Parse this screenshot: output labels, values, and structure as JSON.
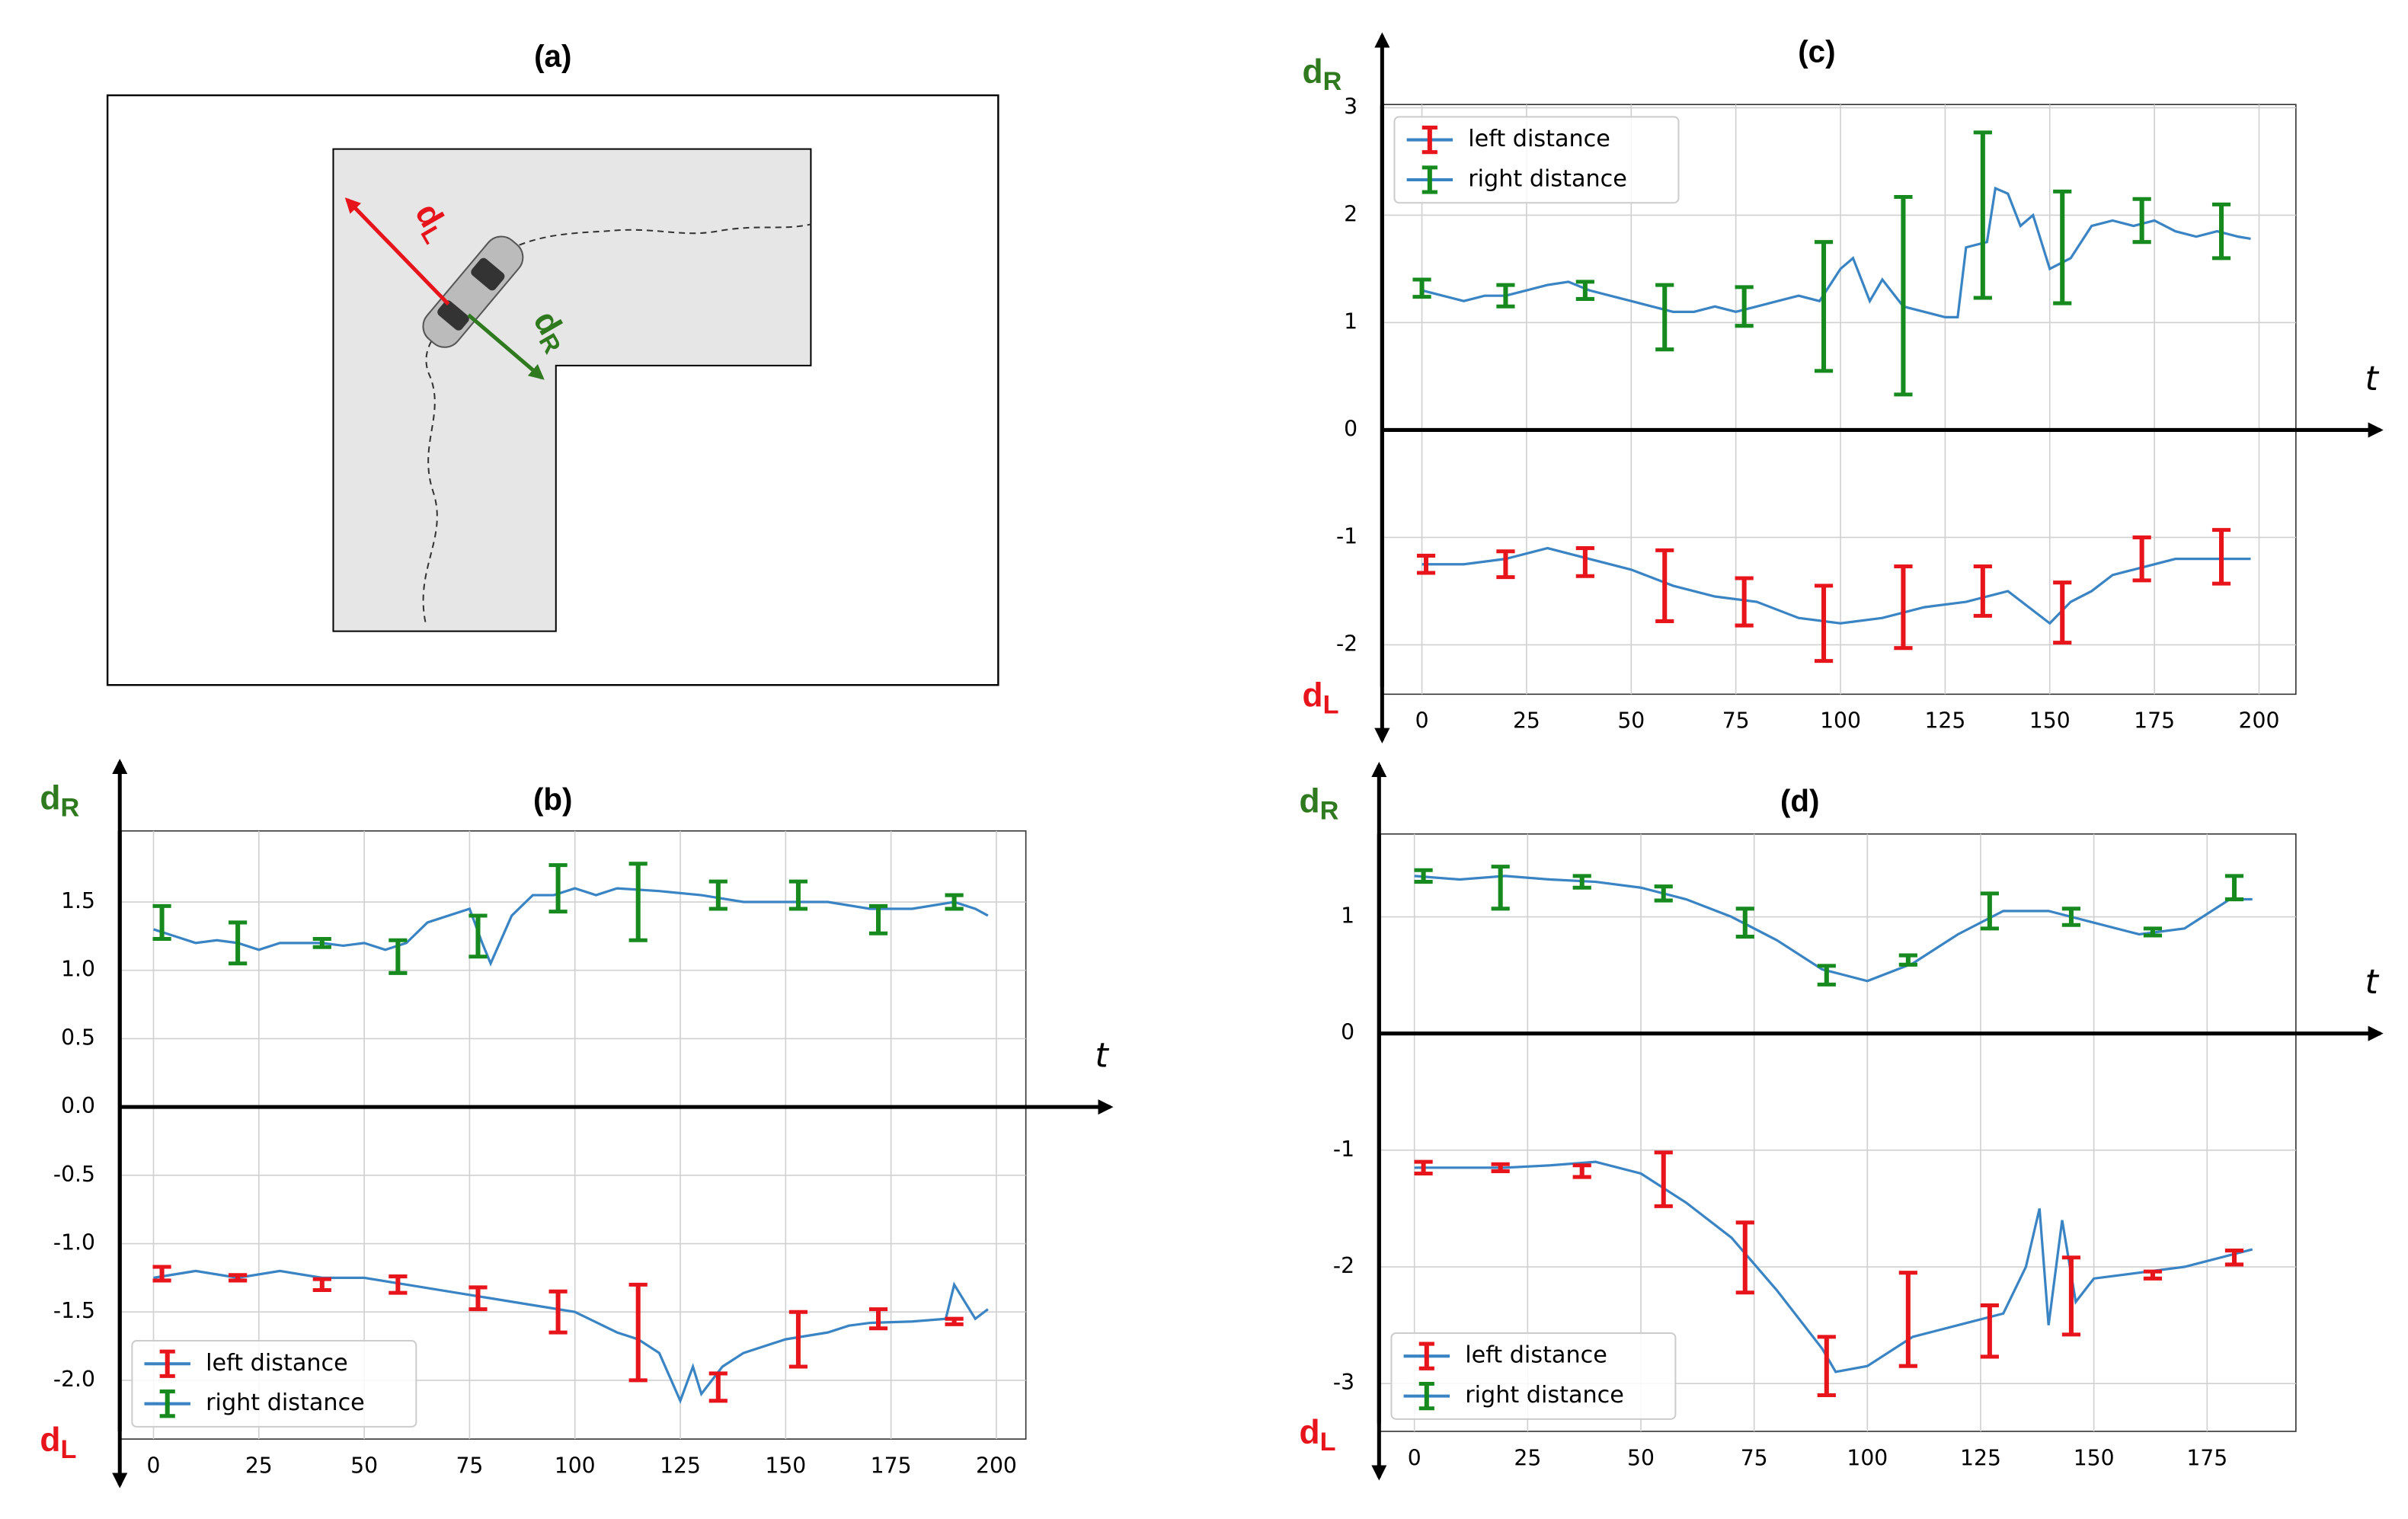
{
  "diagram": {
    "title": "(a)",
    "left_label": "d",
    "left_sub": "L",
    "right_label": "d",
    "right_sub": "R"
  },
  "chart_data": [
    {
      "type": "errorbar_line",
      "title": "(b)",
      "x_label": "t",
      "y_top_label": "d",
      "y_top_sub": "R",
      "y_bottom_label": "d",
      "y_bottom_sub": "L",
      "legend": "lower left",
      "grid": true,
      "xlim": [
        -8,
        207
      ],
      "ylim": [
        -2.43,
        2.02
      ],
      "xticks": [
        0,
        25,
        50,
        75,
        100,
        125,
        150,
        175,
        200
      ],
      "yticks": [
        {
          "value": -2,
          "label": "-2.0"
        },
        -1.5,
        {
          "value": -1,
          "label": "-1.0"
        },
        -0.5,
        {
          "value": 0,
          "label": "0.0"
        },
        0.5,
        {
          "value": 1,
          "label": "1.0"
        },
        1.5
      ],
      "series": [
        {
          "name": "left distance",
          "color": "#e8141c",
          "line_color": "#3a84c4",
          "x": [
            0,
            10,
            20,
            30,
            40,
            50,
            60,
            70,
            80,
            90,
            100,
            110,
            115,
            120,
            125,
            128,
            130,
            135,
            140,
            150,
            160,
            165,
            170,
            180,
            188,
            190,
            195,
            198
          ],
          "values": [
            -1.25,
            -1.2,
            -1.25,
            -1.2,
            -1.25,
            -1.25,
            -1.3,
            -1.35,
            -1.4,
            -1.45,
            -1.5,
            -1.65,
            -1.7,
            -1.8,
            -2.15,
            -1.9,
            -2.1,
            -1.9,
            -1.8,
            -1.7,
            -1.65,
            -1.6,
            -1.58,
            -1.57,
            -1.55,
            -1.3,
            -1.55,
            -1.48
          ],
          "errorbars": {
            "x": [
              2,
              20,
              40,
              58,
              77,
              96,
              115,
              134,
              153,
              172,
              190
            ],
            "values": [
              -1.22,
              -1.25,
              -1.3,
              -1.3,
              -1.4,
              -1.5,
              -1.65,
              -2.05,
              -1.7,
              -1.55,
              -1.57
            ],
            "errors": [
              0.05,
              0.02,
              0.04,
              0.06,
              0.08,
              0.15,
              0.35,
              0.1,
              0.2,
              0.07,
              0.02
            ]
          }
        },
        {
          "name": "right distance",
          "color": "#178a1f",
          "line_color": "#3a84c4",
          "x": [
            0,
            5,
            10,
            15,
            20,
            25,
            30,
            35,
            40,
            45,
            50,
            55,
            60,
            65,
            70,
            75,
            78,
            80,
            85,
            90,
            95,
            100,
            105,
            110,
            120,
            130,
            140,
            150,
            160,
            170,
            180,
            190,
            195,
            198
          ],
          "values": [
            1.3,
            1.25,
            1.2,
            1.22,
            1.2,
            1.15,
            1.2,
            1.2,
            1.2,
            1.18,
            1.2,
            1.15,
            1.2,
            1.35,
            1.4,
            1.45,
            1.2,
            1.05,
            1.4,
            1.55,
            1.55,
            1.6,
            1.55,
            1.6,
            1.58,
            1.55,
            1.5,
            1.5,
            1.5,
            1.45,
            1.45,
            1.5,
            1.45,
            1.4
          ],
          "errorbars": {
            "x": [
              2,
              20,
              40,
              58,
              77,
              96,
              115,
              134,
              153,
              172,
              190
            ],
            "values": [
              1.35,
              1.2,
              1.2,
              1.1,
              1.25,
              1.6,
              1.5,
              1.55,
              1.55,
              1.37,
              1.5
            ],
            "errors": [
              0.12,
              0.15,
              0.03,
              0.12,
              0.15,
              0.17,
              0.28,
              0.1,
              0.1,
              0.1,
              0.05
            ]
          }
        }
      ]
    },
    {
      "type": "errorbar_line",
      "title": "(c)",
      "x_label": "t",
      "y_top_label": "d",
      "y_top_sub": "R",
      "y_bottom_label": "d",
      "y_bottom_sub": "L",
      "legend": "upper left",
      "grid": true,
      "xlim": [
        -9.5,
        208.8
      ],
      "ylim": [
        -2.46,
        3.03
      ],
      "xticks": [
        0,
        25,
        50,
        75,
        100,
        125,
        150,
        175,
        200
      ],
      "yticks": [
        -2,
        -1,
        0,
        1,
        2,
        3
      ],
      "series": [
        {
          "name": "left distance",
          "color": "#e8141c",
          "line_color": "#3a84c4",
          "x": [
            0,
            10,
            20,
            30,
            40,
            50,
            60,
            70,
            80,
            90,
            100,
            110,
            120,
            130,
            140,
            150,
            155,
            160,
            165,
            170,
            180,
            190,
            198
          ],
          "values": [
            -1.25,
            -1.25,
            -1.2,
            -1.1,
            -1.2,
            -1.3,
            -1.45,
            -1.55,
            -1.6,
            -1.75,
            -1.8,
            -1.75,
            -1.65,
            -1.6,
            -1.5,
            -1.8,
            -1.6,
            -1.5,
            -1.35,
            -1.3,
            -1.2,
            -1.2,
            -1.2
          ],
          "errorbars": {
            "x": [
              1,
              20,
              39,
              58,
              77,
              96,
              115,
              134,
              153,
              172,
              191
            ],
            "values": [
              -1.25,
              -1.25,
              -1.23,
              -1.45,
              -1.6,
              -1.8,
              -1.65,
              -1.5,
              -1.7,
              -1.2,
              -1.18
            ],
            "errors": [
              0.08,
              0.12,
              0.13,
              0.33,
              0.22,
              0.35,
              0.38,
              0.23,
              0.28,
              0.2,
              0.25
            ]
          }
        },
        {
          "name": "right distance",
          "color": "#178a1f",
          "line_color": "#3a84c4",
          "x": [
            0,
            5,
            10,
            15,
            20,
            25,
            30,
            35,
            40,
            45,
            50,
            55,
            60,
            65,
            70,
            75,
            80,
            85,
            90,
            95,
            100,
            103,
            107,
            110,
            115,
            120,
            125,
            128,
            130,
            135,
            137,
            140,
            143,
            146,
            150,
            155,
            160,
            165,
            170,
            175,
            180,
            185,
            190,
            195,
            198
          ],
          "values": [
            1.3,
            1.25,
            1.2,
            1.25,
            1.25,
            1.3,
            1.35,
            1.38,
            1.3,
            1.25,
            1.2,
            1.15,
            1.1,
            1.1,
            1.15,
            1.1,
            1.15,
            1.2,
            1.25,
            1.2,
            1.5,
            1.6,
            1.2,
            1.4,
            1.15,
            1.1,
            1.05,
            1.05,
            1.7,
            1.75,
            2.25,
            2.2,
            1.9,
            2.0,
            1.5,
            1.6,
            1.9,
            1.95,
            1.9,
            1.95,
            1.85,
            1.8,
            1.85,
            1.8,
            1.78
          ],
          "errorbars": {
            "x": [
              0,
              20,
              39,
              58,
              77,
              96,
              115,
              134,
              153,
              172,
              191
            ],
            "values": [
              1.32,
              1.25,
              1.3,
              1.05,
              1.15,
              1.15,
              1.25,
              2.0,
              1.7,
              1.95,
              1.85
            ],
            "errors": [
              0.08,
              0.1,
              0.08,
              0.3,
              0.18,
              0.6,
              0.92,
              0.77,
              0.52,
              0.2,
              0.25
            ]
          }
        }
      ]
    },
    {
      "type": "errorbar_line",
      "title": "(d)",
      "x_label": "t",
      "y_top_label": "d",
      "y_top_sub": "R",
      "y_bottom_label": "d",
      "y_bottom_sub": "L",
      "legend": "lower left",
      "grid": true,
      "xlim": [
        -7.8,
        194.6
      ],
      "ylim": [
        -3.41,
        1.71
      ],
      "xticks": [
        0,
        25,
        50,
        75,
        100,
        125,
        150,
        175
      ],
      "yticks": [
        -3,
        -2,
        -1,
        0,
        1
      ],
      "series": [
        {
          "name": "left distance",
          "color": "#e8141c",
          "line_color": "#3a84c4",
          "x": [
            0,
            10,
            20,
            30,
            40,
            50,
            60,
            70,
            80,
            90,
            93,
            100,
            110,
            120,
            130,
            135,
            138,
            140,
            143,
            146,
            150,
            160,
            170,
            180,
            185
          ],
          "values": [
            -1.15,
            -1.15,
            -1.15,
            -1.13,
            -1.1,
            -1.2,
            -1.45,
            -1.75,
            -2.2,
            -2.7,
            -2.9,
            -2.85,
            -2.6,
            -2.5,
            -2.4,
            -2.0,
            -1.5,
            -2.5,
            -1.6,
            -2.3,
            -2.1,
            -2.05,
            -2.0,
            -1.9,
            -1.85
          ],
          "errorbars": {
            "x": [
              2,
              19,
              37,
              55,
              73,
              91,
              109,
              127,
              145,
              163,
              181
            ],
            "values": [
              -1.15,
              -1.15,
              -1.18,
              -1.25,
              -1.92,
              -2.85,
              -2.45,
              -2.55,
              -2.25,
              -2.07,
              -1.92
            ],
            "errors": [
              0.05,
              0.03,
              0.05,
              0.23,
              0.3,
              0.25,
              0.4,
              0.22,
              0.33,
              0.03,
              0.06
            ]
          }
        },
        {
          "name": "right distance",
          "color": "#178a1f",
          "line_color": "#3a84c4",
          "x": [
            0,
            10,
            20,
            30,
            40,
            50,
            60,
            70,
            80,
            90,
            100,
            110,
            120,
            130,
            140,
            150,
            160,
            170,
            180,
            185
          ],
          "values": [
            1.35,
            1.32,
            1.35,
            1.32,
            1.3,
            1.25,
            1.15,
            1.0,
            0.8,
            0.55,
            0.45,
            0.6,
            0.85,
            1.05,
            1.05,
            0.95,
            0.85,
            0.9,
            1.15,
            1.15
          ],
          "errorbars": {
            "x": [
              2,
              19,
              37,
              55,
              73,
              91,
              109,
              127,
              145,
              163,
              181
            ],
            "values": [
              1.35,
              1.25,
              1.3,
              1.2,
              0.95,
              0.5,
              0.63,
              1.05,
              1.0,
              0.87,
              1.25
            ],
            "errors": [
              0.05,
              0.18,
              0.05,
              0.06,
              0.12,
              0.08,
              0.04,
              0.15,
              0.07,
              0.03,
              0.1
            ]
          }
        }
      ]
    }
  ]
}
